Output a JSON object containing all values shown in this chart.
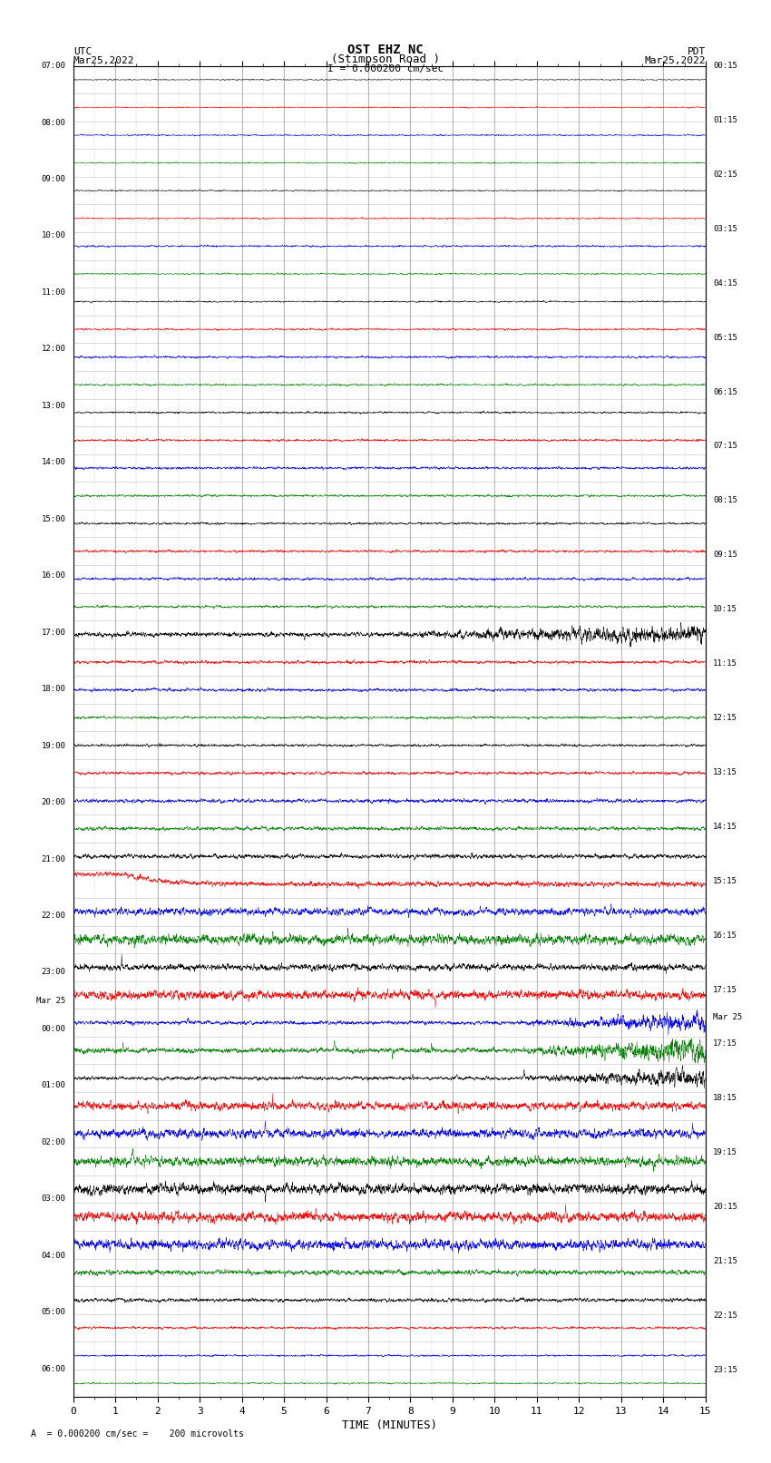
{
  "title_line1": "OST EHZ NC",
  "title_line2": "(Stimpson Road )",
  "title_line3": "I = 0.000200 cm/sec",
  "left_header_line1": "UTC",
  "left_header_line2": "Mar25,2022",
  "right_header_line1": "PDT",
  "right_header_line2": "Mar25,2022",
  "footer_text": "A  = 0.000200 cm/sec =    200 microvolts",
  "xlabel": "TIME (MINUTES)",
  "xlim": [
    0,
    15
  ],
  "xticks": [
    0,
    1,
    2,
    3,
    4,
    5,
    6,
    7,
    8,
    9,
    10,
    11,
    12,
    13,
    14,
    15
  ],
  "n_rows": 48,
  "background_color": "#ffffff",
  "grid_color": "#999999",
  "left_labels": [
    "07:00",
    "",
    "08:00",
    "",
    "09:00",
    "",
    "10:00",
    "",
    "11:00",
    "",
    "12:00",
    "",
    "13:00",
    "",
    "14:00",
    "",
    "15:00",
    "",
    "16:00",
    "",
    "17:00",
    "",
    "18:00",
    "",
    "19:00",
    "",
    "20:00",
    "",
    "21:00",
    "",
    "22:00",
    "",
    "23:00",
    "Mar 25",
    "00:00",
    "",
    "01:00",
    "",
    "02:00",
    "",
    "03:00",
    "",
    "04:00",
    "",
    "05:00",
    "",
    "06:00",
    ""
  ],
  "right_labels": [
    "00:15",
    "",
    "01:15",
    "",
    "02:15",
    "",
    "03:15",
    "",
    "04:15",
    "",
    "05:15",
    "",
    "06:15",
    "",
    "07:15",
    "",
    "08:15",
    "",
    "09:15",
    "",
    "10:15",
    "",
    "11:15",
    "",
    "12:15",
    "",
    "13:15",
    "",
    "14:15",
    "",
    "15:15",
    "",
    "16:15",
    "",
    "17:15",
    "Mar 25",
    "17:15",
    "",
    "18:15",
    "",
    "19:15",
    "",
    "20:15",
    "",
    "21:15",
    "",
    "22:15",
    "",
    "23:15",
    ""
  ],
  "trace_colors_pattern": [
    "black",
    "red",
    "blue",
    "green"
  ],
  "row_amplitudes": [
    0.008,
    0.01,
    0.012,
    0.01,
    0.01,
    0.012,
    0.015,
    0.012,
    0.012,
    0.015,
    0.018,
    0.015,
    0.015,
    0.018,
    0.02,
    0.018,
    0.018,
    0.02,
    0.022,
    0.02,
    0.06,
    0.025,
    0.025,
    0.02,
    0.02,
    0.025,
    0.03,
    0.03,
    0.035,
    0.04,
    0.06,
    0.08,
    0.1,
    0.15,
    0.2,
    0.2,
    0.2,
    0.2,
    0.18,
    0.16,
    0.15,
    0.12,
    0.08,
    0.04,
    0.03,
    0.02,
    0.015,
    0.012
  ]
}
